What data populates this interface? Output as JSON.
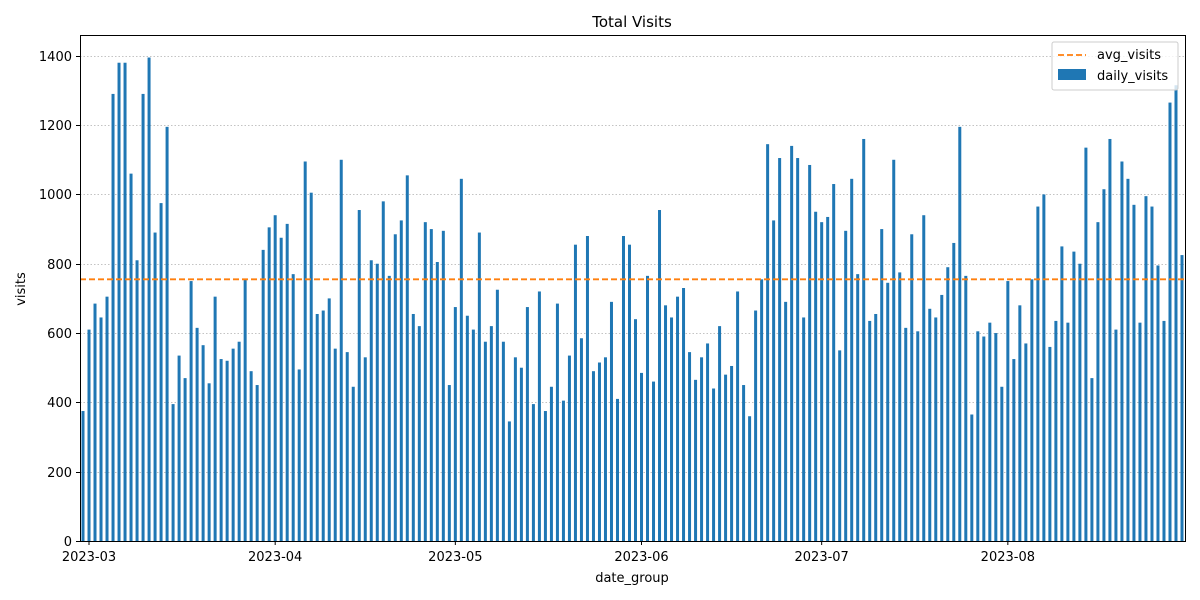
{
  "chart_data": {
    "type": "bar",
    "title": "Total Visits",
    "xlabel": "date_group",
    "ylabel": "visits",
    "ylim": [
      0,
      1460
    ],
    "yticks": [
      0,
      200,
      400,
      600,
      800,
      1000,
      1200,
      1400
    ],
    "grid": "y-dotted",
    "legend_placement": "top-right",
    "x_tick_labels": [
      "2023-03",
      "2023-04",
      "2023-05",
      "2023-06",
      "2023-07",
      "2023-08"
    ],
    "series": [
      {
        "name": "daily_visits",
        "kind": "bar",
        "color": "#1f77b4",
        "values": [
          375,
          610,
          685,
          645,
          705,
          1290,
          1380,
          1380,
          1060,
          810,
          1290,
          1395,
          890,
          975,
          1195,
          395,
          535,
          470,
          750,
          615,
          565,
          455,
          705,
          525,
          520,
          555,
          575,
          755,
          490,
          450,
          840,
          905,
          940,
          875,
          915,
          770,
          495,
          1095,
          1005,
          655,
          665,
          700,
          555,
          1100,
          545,
          445,
          955,
          530,
          810,
          800,
          980,
          765,
          885,
          925,
          1055,
          655,
          620,
          920,
          900,
          805,
          895,
          450,
          675,
          1045,
          650,
          610,
          890,
          575,
          620,
          725,
          575,
          345,
          530,
          500,
          675,
          395,
          720,
          375,
          445,
          685,
          405,
          535,
          855,
          585,
          880,
          490,
          515,
          530,
          690,
          410,
          880,
          855,
          640,
          485,
          765,
          460,
          955,
          680,
          645,
          705,
          730,
          545,
          465,
          530,
          570,
          440,
          620,
          480,
          505,
          720,
          450,
          360,
          665,
          755,
          1145,
          925,
          1105,
          690,
          1140,
          1105,
          645,
          1085,
          950,
          920,
          935,
          1030,
          550,
          895,
          1045,
          770,
          1160,
          635,
          655,
          900,
          745,
          1100,
          775,
          615,
          885,
          605,
          940,
          670,
          645,
          710,
          790,
          860,
          1195,
          765,
          365,
          605,
          590,
          630,
          600,
          445,
          750,
          525,
          680,
          570,
          755,
          965,
          1000,
          560,
          635,
          850,
          630,
          835,
          800,
          1135,
          470,
          920,
          1015,
          1160,
          610,
          1095,
          1045,
          970,
          630,
          995,
          965,
          795,
          635,
          1265,
          1315,
          825
        ]
      },
      {
        "name": "avg_visits",
        "kind": "line",
        "style": "dashed",
        "color": "#ff7f0e",
        "value": 755
      }
    ]
  }
}
